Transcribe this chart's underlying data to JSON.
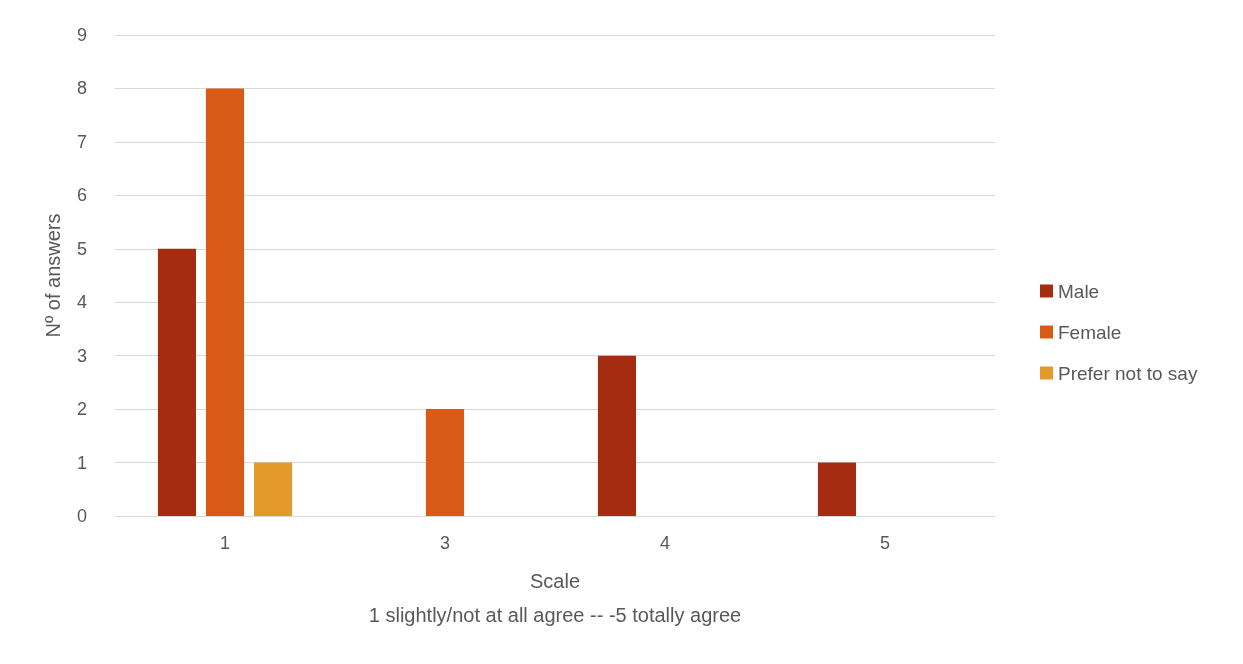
{
  "chart_data": {
    "type": "bar",
    "xlabel": "Scale",
    "ylabel": "Nº of answers",
    "annotations": [
      "1 slightly/not at all agree -- -5 totally agree"
    ],
    "categories": [
      "1",
      "3",
      "4",
      "5"
    ],
    "series": [
      {
        "name": "Male",
        "color": "#a52c10",
        "values": [
          5,
          0,
          3,
          1
        ]
      },
      {
        "name": "Female",
        "color": "#d95a17",
        "values": [
          8,
          2,
          0,
          0
        ]
      },
      {
        "name": "Prefer not to say",
        "color": "#e49a2a",
        "values": [
          1,
          0,
          0,
          0
        ]
      }
    ],
    "ylim": [
      0,
      9
    ],
    "yticks": [
      0,
      1,
      2,
      3,
      4,
      5,
      6,
      7,
      8,
      9
    ],
    "grid": "y",
    "legend": "right"
  }
}
